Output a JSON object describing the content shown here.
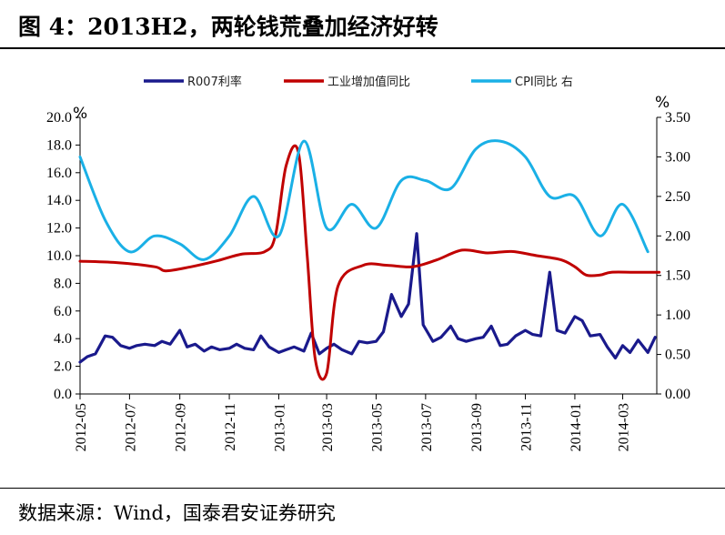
{
  "header": {
    "title": "图 4：2013H2，两轮钱荒叠加经济好转"
  },
  "footer": {
    "source": "数据来源：Wind，国泰君安证券研究"
  },
  "colors": {
    "r007": "#1a1a8c",
    "industry": "#c00000",
    "cpi": "#1ab0e6"
  },
  "chart_data": {
    "type": "line",
    "legend_position": "top",
    "grid": false,
    "y_left": {
      "unit": "%",
      "ylim": [
        0,
        20
      ],
      "ticks": [
        "0.0",
        "2.0",
        "4.0",
        "6.0",
        "8.0",
        "10.0",
        "12.0",
        "14.0",
        "16.0",
        "18.0",
        "20.0"
      ]
    },
    "y_right": {
      "unit": "%",
      "ylim": [
        0,
        3.5
      ],
      "ticks": [
        "0.00",
        "0.50",
        "1.00",
        "1.50",
        "2.00",
        "2.50",
        "3.00",
        "3.50"
      ]
    },
    "x_ticks": [
      "2012-05",
      "2012-07",
      "2012-09",
      "2012-11",
      "2013-01",
      "2013-03",
      "2013-05",
      "2013-07",
      "2013-09",
      "2013-11",
      "2014-01",
      "2014-03"
    ],
    "series": [
      {
        "name": "R007利率",
        "axis": "left",
        "x": [
          "2012-05-01",
          "2012-05-10",
          "2012-05-20",
          "2012-06-01",
          "2012-06-10",
          "2012-06-20",
          "2012-07-01",
          "2012-07-10",
          "2012-07-20",
          "2012-08-01",
          "2012-08-10",
          "2012-08-20",
          "2012-09-01",
          "2012-09-10",
          "2012-09-20",
          "2012-10-01",
          "2012-10-10",
          "2012-10-20",
          "2012-11-01",
          "2012-11-10",
          "2012-11-20",
          "2012-12-01",
          "2012-12-10",
          "2012-12-20",
          "2013-01-01",
          "2013-01-10",
          "2013-01-20",
          "2013-02-01",
          "2013-02-10",
          "2013-02-20",
          "2013-03-01",
          "2013-03-10",
          "2013-03-20",
          "2013-04-01",
          "2013-04-10",
          "2013-04-20",
          "2013-05-01",
          "2013-05-10",
          "2013-05-20",
          "2013-06-01",
          "2013-06-10",
          "2013-06-20",
          "2013-06-28",
          "2013-07-10",
          "2013-07-20",
          "2013-08-01",
          "2013-08-10",
          "2013-08-20",
          "2013-09-01",
          "2013-09-10",
          "2013-09-20",
          "2013-10-01",
          "2013-10-10",
          "2013-10-20",
          "2013-11-01",
          "2013-11-10",
          "2013-11-20",
          "2013-12-01",
          "2013-12-10",
          "2013-12-20",
          "2014-01-01",
          "2014-01-10",
          "2014-01-20",
          "2014-02-01",
          "2014-02-10",
          "2014-02-20",
          "2014-03-01",
          "2014-03-10",
          "2014-03-20",
          "2014-04-01",
          "2014-04-10"
        ],
        "values": [
          2.3,
          2.7,
          2.9,
          4.2,
          4.1,
          3.5,
          3.3,
          3.5,
          3.6,
          3.5,
          3.8,
          3.6,
          4.6,
          3.4,
          3.6,
          3.1,
          3.4,
          3.2,
          3.3,
          3.6,
          3.3,
          3.2,
          4.2,
          3.4,
          3.0,
          3.2,
          3.4,
          3.1,
          4.4,
          2.9,
          3.3,
          3.6,
          3.2,
          2.9,
          3.8,
          3.7,
          3.8,
          4.5,
          7.2,
          5.6,
          6.5,
          11.6,
          5.0,
          3.8,
          4.1,
          4.9,
          4.0,
          3.8,
          4.0,
          4.1,
          4.9,
          3.5,
          3.6,
          4.2,
          4.6,
          4.3,
          4.2,
          8.8,
          4.6,
          4.4,
          5.6,
          5.3,
          4.2,
          4.3,
          3.4,
          2.6,
          3.5,
          3.0,
          3.9,
          3.0,
          4.1
        ]
      },
      {
        "name": "工业增加值同比",
        "axis": "left",
        "x": [
          "2012-05-01",
          "2012-06-15",
          "2012-08-01",
          "2012-08-15",
          "2012-09-15",
          "2012-10-15",
          "2012-11-15",
          "2012-12-15",
          "2012-12-28",
          "2013-01-10",
          "2013-01-25",
          "2013-02-05",
          "2013-02-15",
          "2013-03-01",
          "2013-03-15",
          "2013-04-15",
          "2013-05-15",
          "2013-06-15",
          "2013-07-15",
          "2013-08-15",
          "2013-09-15",
          "2013-10-15",
          "2013-11-15",
          "2013-12-15",
          "2014-01-01",
          "2014-01-15",
          "2014-02-01",
          "2014-02-15",
          "2014-03-15",
          "2014-04-15"
        ],
        "values": [
          9.6,
          9.5,
          9.2,
          8.9,
          9.2,
          9.6,
          10.1,
          10.3,
          11.5,
          16.5,
          17.5,
          10.0,
          2.5,
          1.5,
          7.8,
          9.3,
          9.3,
          9.2,
          9.7,
          10.4,
          10.2,
          10.3,
          10.0,
          9.7,
          9.2,
          8.6,
          8.6,
          8.8,
          8.8,
          8.8
        ]
      },
      {
        "name": "CPI同比 右",
        "axis": "right",
        "x": [
          "2012-05-01",
          "2012-06-01",
          "2012-07-01",
          "2012-08-01",
          "2012-09-01",
          "2012-10-01",
          "2012-11-01",
          "2012-12-01",
          "2013-01-01",
          "2013-02-01",
          "2013-03-01",
          "2013-04-01",
          "2013-05-01",
          "2013-06-01",
          "2013-07-01",
          "2013-08-01",
          "2013-09-01",
          "2013-10-01",
          "2013-11-01",
          "2013-12-01",
          "2014-01-01",
          "2014-02-01",
          "2014-03-01",
          "2014-04-01"
        ],
        "values": [
          3.0,
          2.2,
          1.8,
          2.0,
          1.9,
          1.7,
          2.0,
          2.5,
          2.0,
          3.2,
          2.1,
          2.4,
          2.1,
          2.7,
          2.7,
          2.6,
          3.1,
          3.2,
          3.0,
          2.5,
          2.5,
          2.0,
          2.4,
          1.8
        ]
      }
    ]
  }
}
